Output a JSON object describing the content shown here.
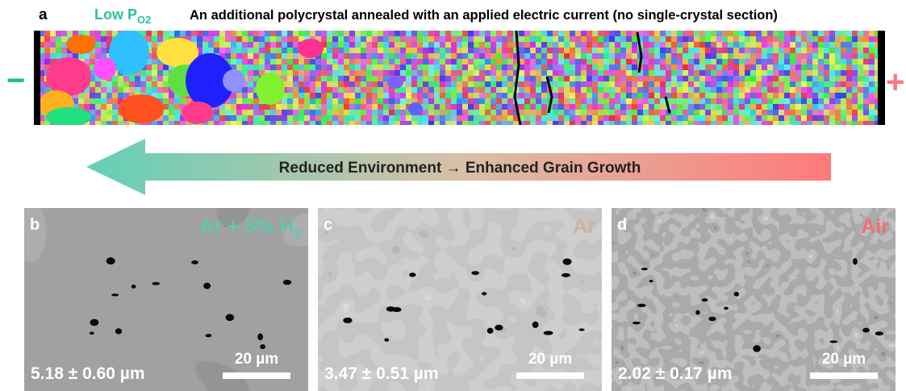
{
  "panel_a": {
    "label": "a",
    "condition": {
      "text": "Low P",
      "subscript": "O2"
    },
    "caption": "An additional polycrystal annealed with an applied electric current (no single-crystal section)",
    "left_electrode": "−",
    "right_electrode": "+"
  },
  "arrow": {
    "label": "Reduced Environment → Enhanced Grain Growth"
  },
  "panels": [
    {
      "label": "b",
      "atmosphere": {
        "text": "Ar + 5% H",
        "subscript": "2"
      },
      "grain_size": "5.18 ± 0.60 µm",
      "scale_bar": "20 µm"
    },
    {
      "label": "c",
      "atmosphere": {
        "text": "Ar"
      },
      "grain_size": "3.47 ± 0.51 µm",
      "scale_bar": "20 µm"
    },
    {
      "label": "d",
      "atmosphere": {
        "text": "Air"
      },
      "grain_size": "2.02 ± 0.17 µm",
      "scale_bar": "20 µm"
    }
  ]
}
